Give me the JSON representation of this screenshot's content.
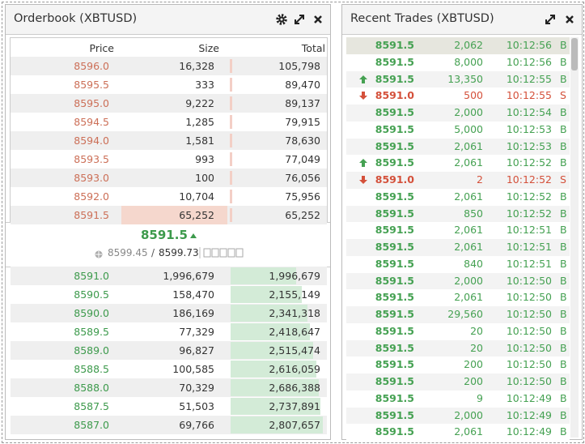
{
  "orderbook": {
    "title": "Orderbook (XBTUSD)",
    "columns": [
      "Price",
      "Size",
      "Total"
    ],
    "asks": [
      [
        "8596.0",
        "16,328",
        "105,798"
      ],
      [
        "8595.5",
        "333",
        "89,470"
      ],
      [
        "8595.0",
        "9,222",
        "89,137"
      ],
      [
        "8594.5",
        "1,285",
        "79,915"
      ],
      [
        "8594.0",
        "1,581",
        "78,630"
      ],
      [
        "8593.5",
        "993",
        "77,049"
      ],
      [
        "8593.0",
        "100",
        "76,056"
      ],
      [
        "8592.0",
        "10,704",
        "75,956"
      ],
      [
        "8591.5",
        "65,252",
        "65,252"
      ]
    ],
    "last_price": "8591.5",
    "index_price": "8599.45",
    "price_separator": "/",
    "mark_price": "8599.73",
    "bids": [
      [
        "8591.0",
        "1,996,679",
        "1,996,679"
      ],
      [
        "8590.5",
        "158,470",
        "2,155,149"
      ],
      [
        "8590.0",
        "186,169",
        "2,341,318"
      ],
      [
        "8589.5",
        "77,329",
        "2,418,647"
      ],
      [
        "8589.0",
        "96,827",
        "2,515,474"
      ],
      [
        "8588.5",
        "100,585",
        "2,616,059"
      ],
      [
        "8588.0",
        "70,329",
        "2,686,388"
      ],
      [
        "8587.5",
        "51,503",
        "2,737,891"
      ],
      [
        "8587.0",
        "69,766",
        "2,807,657"
      ]
    ]
  },
  "recent_trades": {
    "title": "Recent Trades (XBTUSD)",
    "rows": [
      {
        "tick": null,
        "price": "8591.5",
        "size": "2,062",
        "time": "10:12:56",
        "side": "B"
      },
      {
        "tick": null,
        "price": "8591.5",
        "size": "8,000",
        "time": "10:12:56",
        "side": "B"
      },
      {
        "tick": "up",
        "price": "8591.5",
        "size": "13,350",
        "time": "10:12:55",
        "side": "B"
      },
      {
        "tick": "down",
        "price": "8591.0",
        "size": "500",
        "time": "10:12:55",
        "side": "S"
      },
      {
        "tick": null,
        "price": "8591.5",
        "size": "2,000",
        "time": "10:12:54",
        "side": "B"
      },
      {
        "tick": null,
        "price": "8591.5",
        "size": "5,000",
        "time": "10:12:53",
        "side": "B"
      },
      {
        "tick": null,
        "price": "8591.5",
        "size": "2,061",
        "time": "10:12:53",
        "side": "B"
      },
      {
        "tick": "up",
        "price": "8591.5",
        "size": "2,061",
        "time": "10:12:52",
        "side": "B"
      },
      {
        "tick": "down",
        "price": "8591.0",
        "size": "2",
        "time": "10:12:52",
        "side": "S"
      },
      {
        "tick": null,
        "price": "8591.5",
        "size": "2,061",
        "time": "10:12:52",
        "side": "B"
      },
      {
        "tick": null,
        "price": "8591.5",
        "size": "850",
        "time": "10:12:52",
        "side": "B"
      },
      {
        "tick": null,
        "price": "8591.5",
        "size": "2,061",
        "time": "10:12:51",
        "side": "B"
      },
      {
        "tick": null,
        "price": "8591.5",
        "size": "2,061",
        "time": "10:12:51",
        "side": "B"
      },
      {
        "tick": null,
        "price": "8591.5",
        "size": "840",
        "time": "10:12:51",
        "side": "B"
      },
      {
        "tick": null,
        "price": "8591.5",
        "size": "2,000",
        "time": "10:12:50",
        "side": "B"
      },
      {
        "tick": null,
        "price": "8591.5",
        "size": "2,061",
        "time": "10:12:50",
        "side": "B"
      },
      {
        "tick": null,
        "price": "8591.5",
        "size": "29,560",
        "time": "10:12:50",
        "side": "B"
      },
      {
        "tick": null,
        "price": "8591.5",
        "size": "20",
        "time": "10:12:50",
        "side": "B"
      },
      {
        "tick": null,
        "price": "8591.5",
        "size": "20",
        "time": "10:12:50",
        "side": "B"
      },
      {
        "tick": null,
        "price": "8591.5",
        "size": "200",
        "time": "10:12:50",
        "side": "B"
      },
      {
        "tick": null,
        "price": "8591.5",
        "size": "200",
        "time": "10:12:50",
        "side": "B"
      },
      {
        "tick": null,
        "price": "8591.5",
        "size": "9",
        "time": "10:12:49",
        "side": "B"
      },
      {
        "tick": null,
        "price": "8591.5",
        "size": "2,000",
        "time": "10:12:49",
        "side": "B"
      },
      {
        "tick": null,
        "price": "8591.5",
        "size": "2,061",
        "time": "10:12:49",
        "side": "B"
      }
    ]
  }
}
